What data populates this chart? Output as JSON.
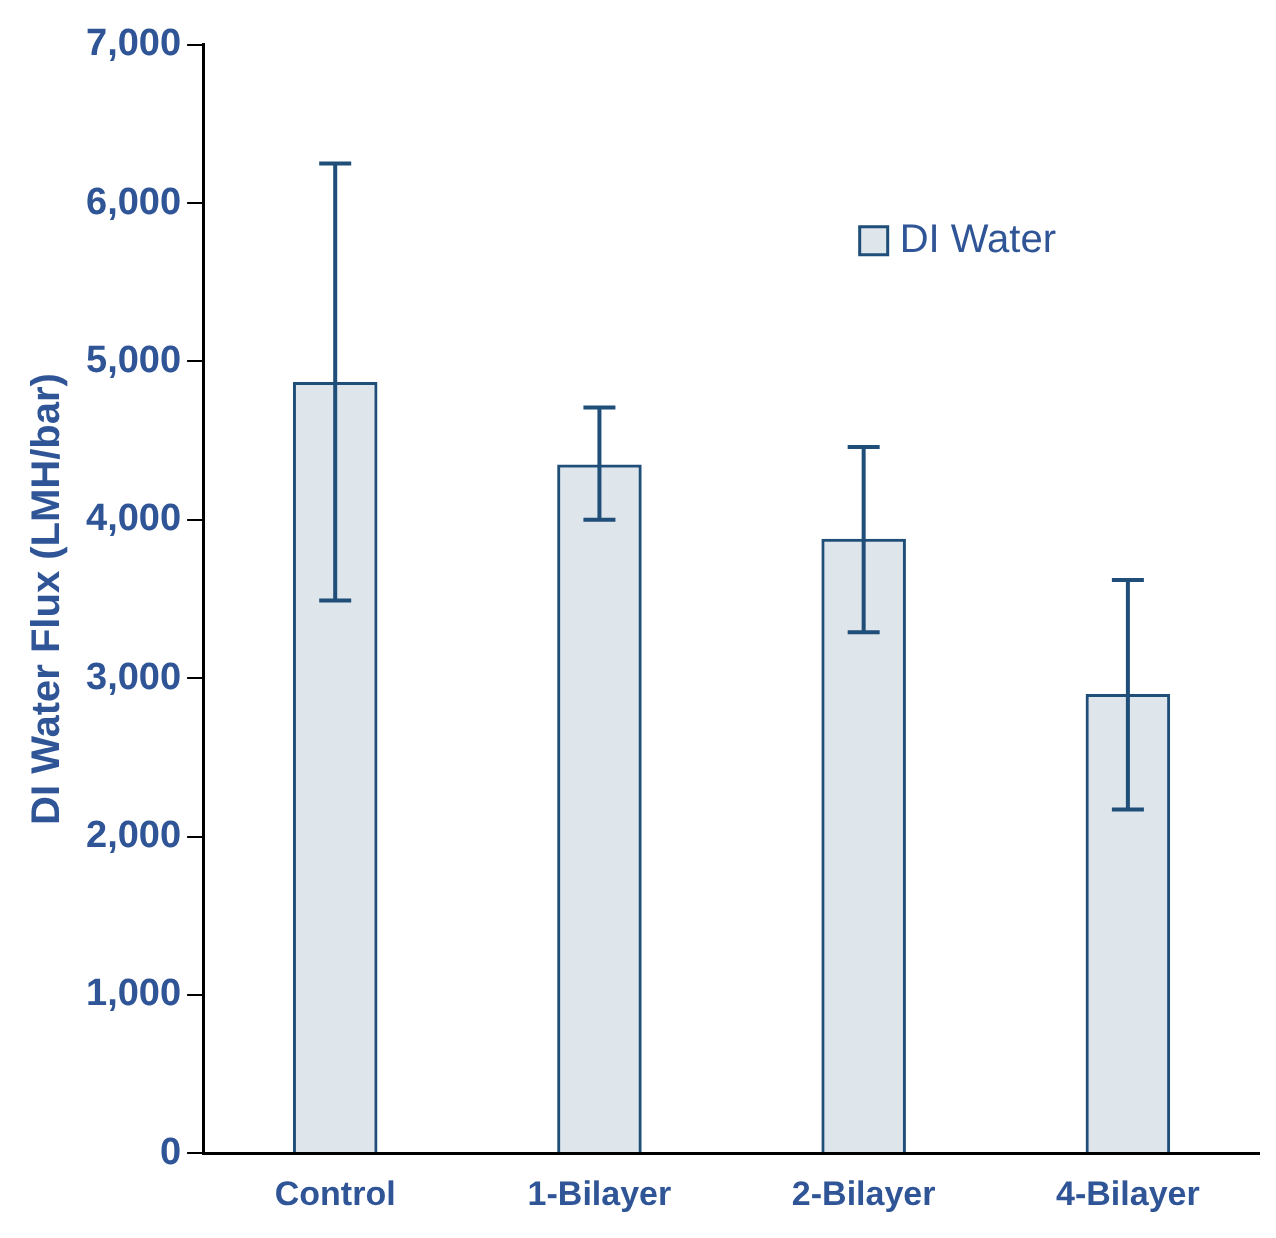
{
  "chart_data": {
    "type": "bar",
    "ylabel": "DI Water Flux (LMH/bar)",
    "categories": [
      "Control",
      "1-Bilayer",
      "2-Bilayer",
      "4-Bilayer"
    ],
    "series": [
      {
        "name": "DI Water",
        "color": "#1f4e79",
        "values": [
          4870,
          4350,
          3880,
          2900
        ],
        "errors": [
          [
            3490,
            6250
          ],
          [
            4000,
            4710
          ],
          [
            3290,
            4460
          ],
          [
            2170,
            3620
          ]
        ]
      }
    ],
    "ylim": [
      0,
      7000
    ],
    "yticks": [
      {
        "value": 0,
        "label": "0"
      },
      {
        "value": 1000,
        "label": "1,000"
      },
      {
        "value": 2000,
        "label": "2,000"
      },
      {
        "value": 3000,
        "label": "3,000"
      },
      {
        "value": 4000,
        "label": "4,000"
      },
      {
        "value": 5000,
        "label": "5,000"
      },
      {
        "value": 6000,
        "label": "6,000"
      },
      {
        "value": 7000,
        "label": "7,000"
      }
    ],
    "grid": false,
    "legend": "top right"
  }
}
